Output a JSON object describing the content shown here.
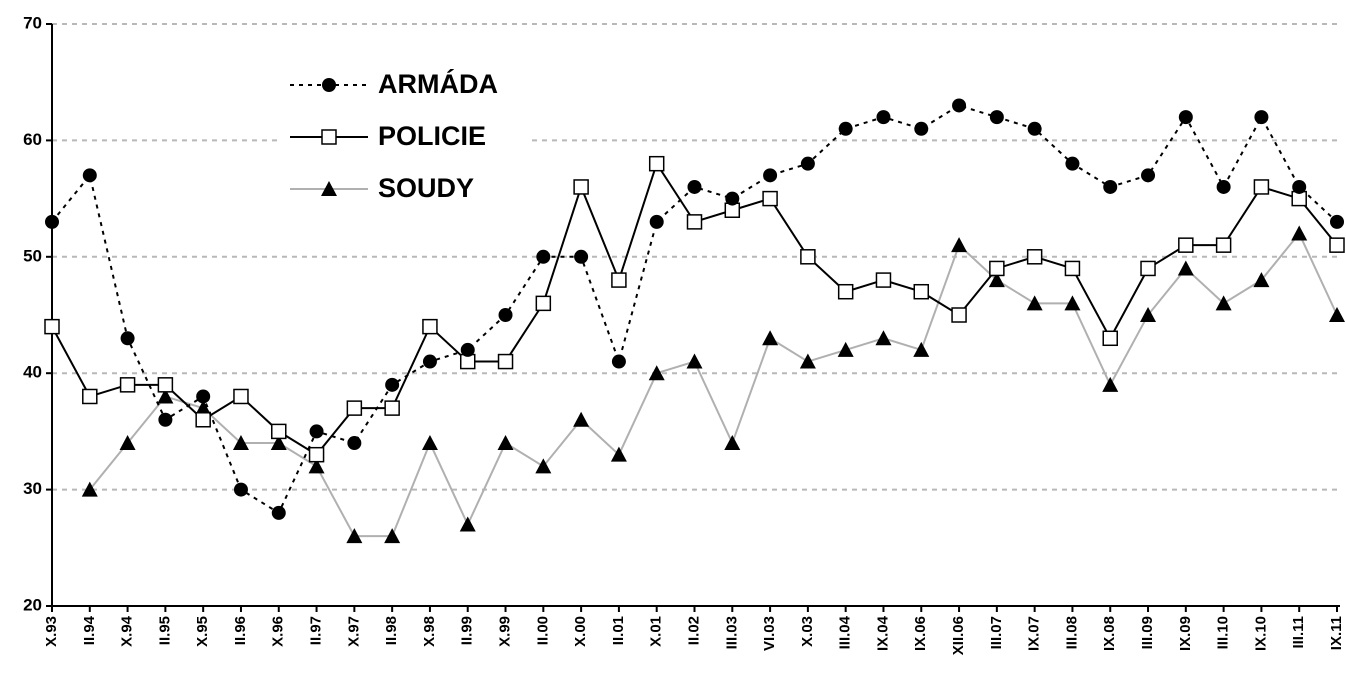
{
  "chart_data": {
    "type": "line",
    "categories": [
      "X.93",
      "II.94",
      "X.94",
      "II.95",
      "X.95",
      "II.96",
      "X.96",
      "II.97",
      "X.97",
      "II.98",
      "X.98",
      "II.99",
      "X.99",
      "II.00",
      "X.00",
      "II.01",
      "X.01",
      "II.02",
      "III.03",
      "VI.03",
      "X.03",
      "III.04",
      "IX.04",
      "IX.06",
      "XII.06",
      "III.07",
      "IX.07",
      "III.08",
      "IX.08",
      "III.09",
      "IX.09",
      "III.10",
      "IX.10",
      "III.11",
      "IX.11"
    ],
    "series": [
      {
        "name": "ARMÁDA",
        "color": "#000000",
        "line_style": "dotted",
        "marker": "circle",
        "values": [
          53,
          57,
          43,
          36,
          38,
          30,
          28,
          35,
          34,
          39,
          41,
          42,
          45,
          50,
          50,
          41,
          53,
          56,
          55,
          57,
          58,
          61,
          62,
          61,
          63,
          62,
          61,
          58,
          56,
          57,
          62,
          56,
          62,
          56,
          53
        ]
      },
      {
        "name": "POLICIE",
        "color": "#000000",
        "line_style": "solid",
        "marker": "square",
        "values": [
          44,
          38,
          39,
          39,
          36,
          38,
          35,
          33,
          37,
          37,
          44,
          41,
          41,
          46,
          56,
          48,
          58,
          53,
          54,
          55,
          50,
          47,
          48,
          47,
          45,
          49,
          50,
          49,
          43,
          49,
          51,
          51,
          56,
          55,
          51
        ]
      },
      {
        "name": "SOUDY",
        "color": "#b0b0b0",
        "line_style": "solid",
        "marker": "triangle",
        "values": [
          null,
          30,
          34,
          38,
          37,
          34,
          34,
          32,
          26,
          26,
          34,
          27,
          34,
          32,
          36,
          33,
          40,
          41,
          34,
          43,
          41,
          42,
          43,
          42,
          51,
          48,
          46,
          46,
          39,
          45,
          49,
          46,
          48,
          52,
          45
        ]
      }
    ],
    "ylim": [
      20,
      70
    ],
    "yticks": [
      20,
      30,
      40,
      50,
      60,
      70
    ],
    "grid": true,
    "legend": "upper-left"
  }
}
